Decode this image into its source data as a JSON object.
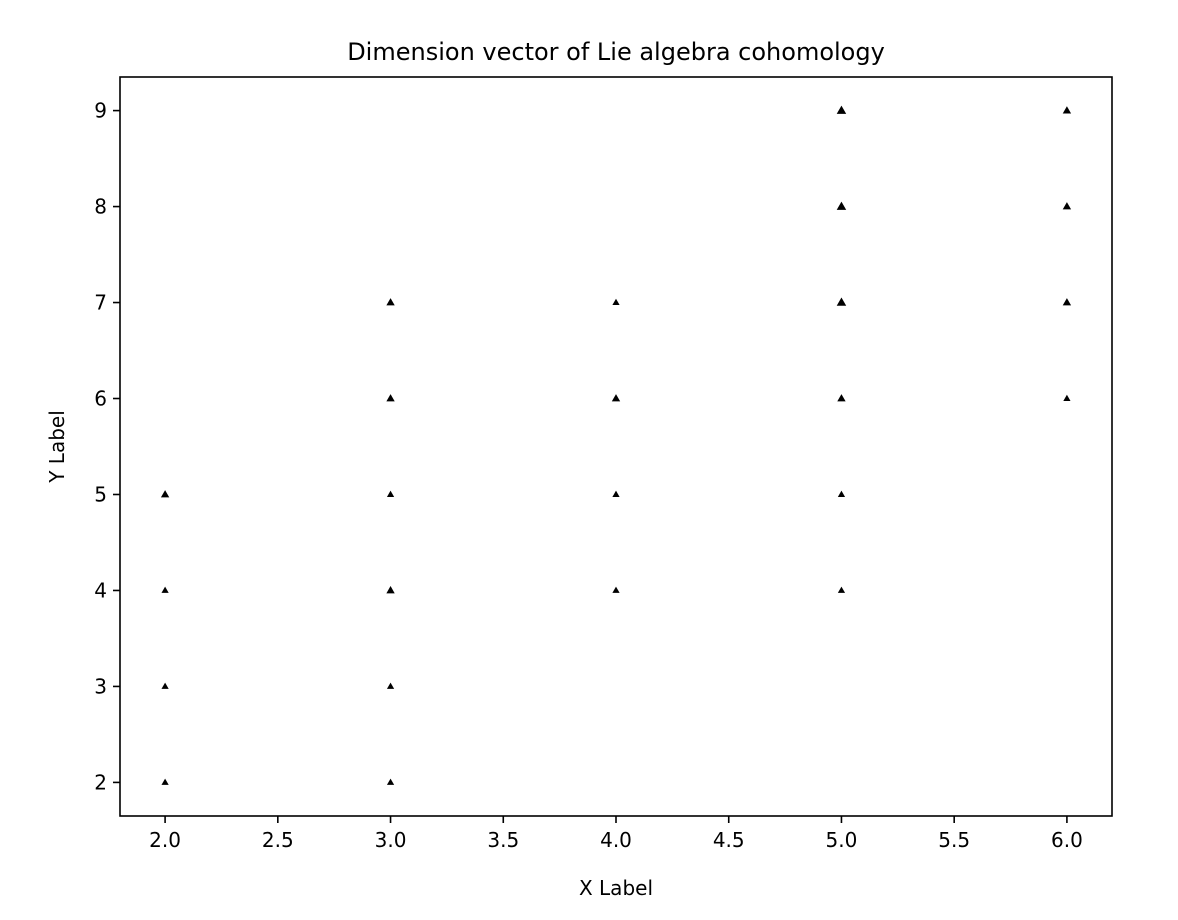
{
  "chart_data": {
    "type": "scatter",
    "title": "Dimension vector of Lie algebra cohomology",
    "xlabel": "X Label",
    "ylabel": "Y Label",
    "xlim": [
      1.8,
      6.2
    ],
    "ylim": [
      1.65,
      9.35
    ],
    "x_ticks": [
      "2.0",
      "2.5",
      "3.0",
      "3.5",
      "4.0",
      "4.5",
      "5.0",
      "5.5",
      "6.0"
    ],
    "y_ticks": [
      "2",
      "3",
      "4",
      "5",
      "6",
      "7",
      "8",
      "9"
    ],
    "grid": false,
    "marker": "triangle",
    "marker_color": "#000000",
    "series": [
      {
        "points": [
          {
            "x": 2,
            "y": 2,
            "size": 1
          },
          {
            "x": 2,
            "y": 3,
            "size": 1
          },
          {
            "x": 2,
            "y": 4,
            "size": 1
          },
          {
            "x": 2,
            "y": 5,
            "size": 2
          },
          {
            "x": 3,
            "y": 2,
            "size": 1
          },
          {
            "x": 3,
            "y": 3,
            "size": 1
          },
          {
            "x": 3,
            "y": 4,
            "size": 2
          },
          {
            "x": 3,
            "y": 5,
            "size": 1
          },
          {
            "x": 3,
            "y": 6,
            "size": 2
          },
          {
            "x": 3,
            "y": 7,
            "size": 2
          },
          {
            "x": 4,
            "y": 4,
            "size": 1
          },
          {
            "x": 4,
            "y": 5,
            "size": 1
          },
          {
            "x": 4,
            "y": 6,
            "size": 2
          },
          {
            "x": 4,
            "y": 7,
            "size": 1
          },
          {
            "x": 5,
            "y": 4,
            "size": 1
          },
          {
            "x": 5,
            "y": 5,
            "size": 1
          },
          {
            "x": 5,
            "y": 6,
            "size": 2
          },
          {
            "x": 5,
            "y": 7,
            "size": 3
          },
          {
            "x": 5,
            "y": 8,
            "size": 3
          },
          {
            "x": 5,
            "y": 9,
            "size": 3
          },
          {
            "x": 6,
            "y": 6,
            "size": 1
          },
          {
            "x": 6,
            "y": 7,
            "size": 2
          },
          {
            "x": 6,
            "y": 8,
            "size": 2
          },
          {
            "x": 6,
            "y": 9,
            "size": 2
          }
        ]
      }
    ]
  }
}
